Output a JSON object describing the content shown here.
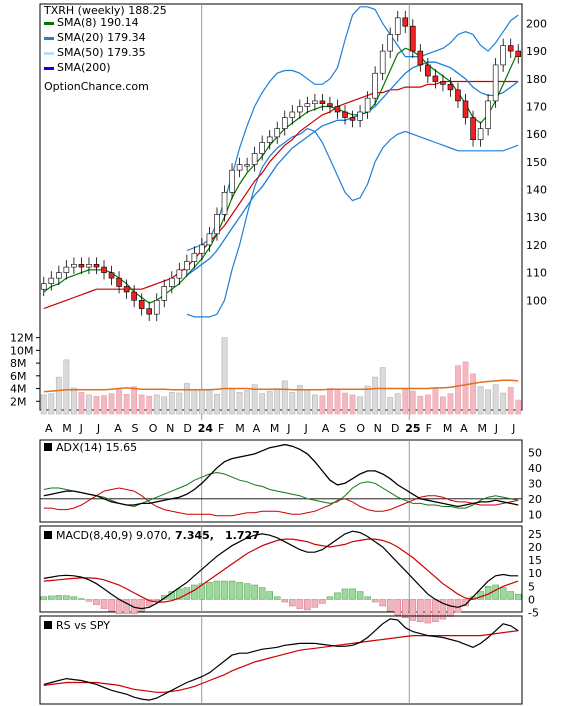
{
  "chart_data": [
    {
      "type": "candlestick",
      "title": "TXRH (weekly) 188.25",
      "watermark": "OptionChance.com",
      "legend": [
        {
          "label": "SMA(8) 190.14",
          "color": "#007700"
        },
        {
          "label": "SMA(20) 179.34",
          "color": "#1e7fd8"
        },
        {
          "label": "SMA(50) 179.35",
          "color": "#b9e0ff"
        },
        {
          "label": "SMA(200)",
          "color": "#0000ee"
        }
      ],
      "ylim": [
        90,
        207
      ],
      "yticks": [
        100,
        110,
        120,
        130,
        140,
        150,
        160,
        170,
        180,
        190,
        200
      ],
      "x_labels": [
        "A",
        "M",
        "J",
        "J",
        "A",
        "S",
        "O",
        "N",
        "D",
        "24",
        "F",
        "M",
        "A",
        "M",
        "J",
        "J",
        "A",
        "S",
        "O",
        "N",
        "D",
        "25",
        "F",
        "M",
        "A",
        "M",
        "J",
        "J"
      ],
      "close": [
        106,
        108,
        110,
        112,
        113,
        112,
        113,
        112,
        110,
        108,
        105,
        103,
        100,
        97,
        95,
        100,
        105,
        108,
        111,
        114,
        117,
        120,
        124,
        131,
        139,
        147,
        149,
        149,
        153,
        157,
        159,
        162,
        166,
        168,
        170,
        171,
        172,
        171,
        170,
        168,
        166,
        165,
        168,
        173,
        182,
        190,
        196,
        202,
        199,
        190,
        185,
        181,
        179,
        178,
        176,
        172,
        166,
        158,
        162,
        172,
        185,
        192,
        190,
        188
      ],
      "sma8": [
        103,
        105,
        106,
        108,
        109,
        110,
        111,
        111,
        111,
        110,
        108,
        106,
        103,
        101,
        99,
        100,
        102,
        104,
        106,
        109,
        112,
        115,
        119,
        124,
        130,
        137,
        142,
        146,
        149,
        152,
        156,
        159,
        162,
        164,
        166,
        168,
        169,
        170,
        170,
        169,
        168,
        167,
        167,
        168,
        171,
        177,
        183,
        189,
        191,
        190,
        188,
        185,
        183,
        181,
        179,
        175,
        171,
        166,
        164,
        167,
        172,
        178,
        184,
        190
      ],
      "sma20": [
        null,
        null,
        null,
        null,
        null,
        null,
        null,
        null,
        null,
        null,
        null,
        null,
        null,
        null,
        null,
        null,
        null,
        null,
        null,
        109,
        111,
        113,
        115,
        118,
        122,
        126,
        130,
        134,
        138,
        141,
        145,
        149,
        152,
        155,
        157,
        159,
        161,
        163,
        164,
        165,
        165,
        166,
        167,
        168,
        170,
        173,
        176,
        179,
        182,
        184,
        185,
        186,
        186,
        185,
        184,
        182,
        180,
        177,
        175,
        174,
        174,
        175,
        177,
        179
      ],
      "sma50": [
        97,
        98,
        99,
        100,
        101,
        102,
        103,
        104,
        104,
        104,
        104,
        104,
        104,
        104,
        105,
        106,
        107,
        108,
        110,
        112,
        115,
        118,
        121,
        124,
        127,
        131,
        135,
        139,
        143,
        146,
        150,
        153,
        156,
        158,
        161,
        163,
        165,
        167,
        168,
        170,
        171,
        172,
        173,
        174,
        175,
        175,
        176,
        176,
        177,
        177,
        177,
        178,
        178,
        179,
        179,
        179,
        179,
        179,
        179,
        179,
        179,
        179,
        179,
        179
      ],
      "bb_upper": [
        null,
        null,
        null,
        null,
        null,
        null,
        null,
        null,
        null,
        null,
        null,
        null,
        null,
        null,
        null,
        null,
        null,
        null,
        null,
        118,
        119,
        120,
        122,
        128,
        136,
        145,
        155,
        163,
        170,
        175,
        179,
        182,
        183,
        183,
        182,
        180,
        178,
        178,
        180,
        184,
        194,
        203,
        206,
        206,
        205,
        200,
        196,
        192,
        188,
        188,
        188,
        189,
        190,
        191,
        193,
        196,
        197,
        196,
        192,
        190,
        193,
        197,
        201,
        203
      ],
      "bb_lower": [
        null,
        null,
        null,
        null,
        null,
        null,
        null,
        null,
        null,
        null,
        null,
        null,
        null,
        null,
        null,
        null,
        null,
        null,
        null,
        95,
        94,
        94,
        94,
        95,
        100,
        111,
        120,
        131,
        141,
        148,
        152,
        155,
        157,
        159,
        160,
        162,
        161,
        157,
        151,
        145,
        139,
        136,
        137,
        142,
        150,
        155,
        158,
        160,
        161,
        160,
        159,
        158,
        157,
        156,
        155,
        154,
        154,
        154,
        154,
        154,
        154,
        154,
        155,
        156
      ],
      "volume_millions": [
        3.0,
        3.2,
        5.8,
        8.5,
        4.1,
        3.4,
        3.0,
        2.8,
        2.9,
        3.2,
        3.8,
        3.1,
        4.3,
        3.0,
        2.8,
        3.0,
        2.7,
        3.4,
        3.3,
        4.8,
        3.8,
        3.9,
        3.9,
        3.1,
        12.0,
        3.8,
        3.4,
        3.7,
        4.6,
        3.2,
        3.6,
        4.0,
        5.2,
        3.4,
        4.5,
        3.8,
        3.0,
        2.9,
        4.0,
        3.8,
        3.3,
        3.0,
        2.7,
        4.4,
        5.8,
        7.3,
        2.6,
        3.2,
        4.0,
        3.6,
        2.8,
        3.0,
        4.0,
        2.7,
        3.2,
        7.6,
        8.2,
        6.3,
        4.3,
        3.8,
        4.6,
        3.3,
        4.2,
        2.2
      ],
      "volume_sma": [
        3.5,
        3.6,
        3.7,
        3.8,
        3.8,
        3.8,
        3.8,
        3.8,
        3.8,
        3.9,
        4.0,
        4.1,
        4.0,
        3.9,
        3.9,
        3.9,
        3.9,
        3.8,
        3.8,
        3.8,
        3.8,
        3.8,
        3.8,
        3.9,
        4.0,
        4.0,
        4.0,
        4.0,
        3.9,
        3.9,
        3.9,
        3.9,
        3.9,
        3.8,
        3.8,
        3.8,
        3.8,
        3.8,
        3.9,
        3.9,
        3.9,
        3.9,
        3.9,
        3.9,
        4.0,
        4.0,
        4.0,
        4.0,
        4.0,
        4.0,
        4.0,
        4.0,
        4.1,
        4.1,
        4.2,
        4.4,
        4.6,
        4.8,
        5.0,
        5.1,
        5.2,
        5.3,
        5.3,
        5.2
      ],
      "volume_yticks": [
        "2M",
        "4M",
        "6M",
        "8M",
        "10M",
        "12M"
      ]
    },
    {
      "type": "line",
      "title": "ADX(14) 15.65",
      "ylim": [
        5,
        58
      ],
      "yticks": [
        10,
        20,
        30,
        40,
        50
      ],
      "adx": [
        22,
        23,
        24,
        25,
        25,
        24,
        23,
        22,
        20,
        18,
        17,
        16,
        16,
        17,
        17,
        18,
        19,
        20,
        21,
        23,
        26,
        30,
        35,
        40,
        44,
        46,
        47,
        48,
        49,
        51,
        53,
        54,
        55,
        54,
        52,
        49,
        44,
        38,
        32,
        29,
        30,
        33,
        36,
        38,
        38,
        36,
        33,
        29,
        26,
        23,
        20,
        19,
        18,
        17,
        16,
        15,
        16,
        17,
        18,
        18,
        19,
        18,
        17,
        16
      ],
      "plus_di": [
        26,
        27,
        27,
        26,
        25,
        24,
        23,
        22,
        21,
        19,
        17,
        16,
        15,
        17,
        19,
        21,
        23,
        25,
        27,
        29,
        32,
        34,
        36,
        37,
        36,
        34,
        32,
        31,
        29,
        28,
        26,
        25,
        24,
        23,
        22,
        20,
        19,
        18,
        17,
        18,
        22,
        27,
        30,
        31,
        30,
        27,
        24,
        21,
        19,
        17,
        17,
        16,
        16,
        15,
        15,
        14,
        14,
        16,
        19,
        21,
        22,
        21,
        20,
        19
      ],
      "minus_di": [
        14,
        14,
        13,
        13,
        14,
        16,
        19,
        22,
        25,
        26,
        27,
        26,
        25,
        22,
        18,
        15,
        13,
        12,
        11,
        10,
        10,
        10,
        10,
        9,
        9,
        9,
        10,
        11,
        11,
        12,
        12,
        12,
        11,
        10,
        10,
        11,
        12,
        14,
        16,
        19,
        20,
        18,
        15,
        13,
        12,
        12,
        13,
        15,
        17,
        19,
        21,
        22,
        22,
        21,
        19,
        18,
        18,
        17,
        16,
        16,
        16,
        17,
        18,
        19
      ]
    },
    {
      "type": "line",
      "title": "MACD(8,40,9)",
      "label_values": [
        "9.070",
        "7.345",
        "1.727"
      ],
      "ylim": [
        -4.8,
        28
      ],
      "yticks": [
        -5,
        0,
        5,
        10,
        15,
        20,
        25
      ],
      "macd": [
        8,
        8.5,
        9,
        9.2,
        9,
        8.5,
        7.5,
        6,
        4,
        2,
        0,
        -1.5,
        -3,
        -3.5,
        -3,
        -1.5,
        0.5,
        2.5,
        4.5,
        6.5,
        9,
        11.5,
        14,
        16.5,
        18.5,
        20.5,
        22,
        23.5,
        24.5,
        25,
        24.5,
        23.5,
        22,
        20.5,
        19,
        18,
        18,
        19,
        21,
        23,
        25,
        26,
        25.5,
        24,
        22,
        20,
        17,
        14,
        11,
        8,
        5,
        2,
        0,
        -1.5,
        -2.5,
        -3,
        -2,
        1,
        4,
        7,
        9,
        9.5,
        9,
        9
      ],
      "signal": [
        7,
        7.2,
        7.5,
        7.8,
        8,
        8.2,
        8.2,
        8,
        7.5,
        6.5,
        5.5,
        4,
        2.5,
        1,
        -0.5,
        -1,
        -1,
        -0.5,
        0.5,
        2,
        3.5,
        5.5,
        7.5,
        9.5,
        11.5,
        13.5,
        15.5,
        17.5,
        19,
        20.5,
        21.5,
        22.5,
        23,
        23,
        22.5,
        22,
        21,
        20.5,
        20,
        20.5,
        21,
        22,
        22.5,
        23,
        23,
        22.5,
        21.5,
        20,
        18,
        16,
        13.5,
        11,
        8.5,
        6,
        4,
        2,
        0.5,
        0,
        1,
        2,
        3.5,
        5,
        6,
        7
      ],
      "hist": [
        1,
        1.3,
        1.5,
        1.4,
        1,
        0.3,
        -0.7,
        -2,
        -3.5,
        -4.5,
        -5.5,
        -5.5,
        -5.5,
        -4.5,
        -2.5,
        -0.5,
        1.5,
        3,
        4,
        4.5,
        5.5,
        6,
        6.5,
        7,
        7,
        7,
        6.5,
        6,
        5.5,
        4.5,
        3,
        1,
        -1,
        -2.5,
        -3.5,
        -4,
        -3,
        -1.5,
        1,
        2.5,
        4,
        4,
        3,
        1,
        -1,
        -2.5,
        -4.5,
        -6,
        -7,
        -8,
        -8.5,
        -9,
        -8.5,
        -7.5,
        -6.5,
        -5,
        -2.5,
        1,
        3,
        5,
        5.5,
        4.5,
        3,
        2
      ]
    },
    {
      "type": "line",
      "title": "RS vs SPY",
      "ylim": [
        0.3,
        1.2
      ],
      "rs": [
        0.5,
        0.52,
        0.54,
        0.56,
        0.55,
        0.54,
        0.52,
        0.5,
        0.47,
        0.44,
        0.42,
        0.4,
        0.37,
        0.35,
        0.34,
        0.36,
        0.4,
        0.44,
        0.48,
        0.52,
        0.55,
        0.58,
        0.62,
        0.68,
        0.74,
        0.8,
        0.82,
        0.82,
        0.84,
        0.86,
        0.87,
        0.88,
        0.9,
        0.91,
        0.92,
        0.92,
        0.92,
        0.91,
        0.9,
        0.89,
        0.89,
        0.9,
        0.93,
        0.98,
        1.05,
        1.12,
        1.17,
        1.16,
        1.08,
        1.04,
        1.02,
        1.0,
        0.99,
        0.98,
        0.96,
        0.94,
        0.91,
        0.88,
        0.92,
        0.98,
        1.05,
        1.12,
        1.1,
        1.05
      ],
      "rs_sma": [
        0.49,
        0.5,
        0.51,
        0.52,
        0.52,
        0.52,
        0.52,
        0.52,
        0.51,
        0.5,
        0.49,
        0.47,
        0.45,
        0.44,
        0.43,
        0.42,
        0.42,
        0.43,
        0.44,
        0.46,
        0.48,
        0.51,
        0.54,
        0.57,
        0.6,
        0.64,
        0.67,
        0.7,
        0.73,
        0.75,
        0.77,
        0.79,
        0.81,
        0.83,
        0.85,
        0.86,
        0.87,
        0.88,
        0.89,
        0.9,
        0.91,
        0.92,
        0.93,
        0.94,
        0.95,
        0.96,
        0.97,
        0.98,
        0.99,
        1.0,
        1.0,
        1.0,
        1.0,
        1.0,
        1.0,
        1.0,
        1.0,
        1.0,
        1.0,
        1.01,
        1.02,
        1.03,
        1.04,
        1.05
      ]
    }
  ]
}
